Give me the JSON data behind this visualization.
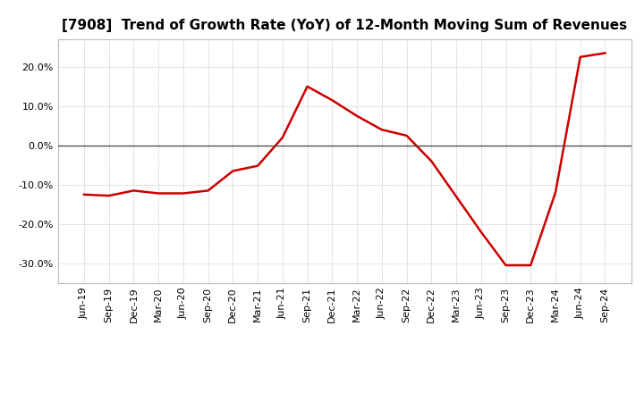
{
  "title": "[7908]  Trend of Growth Rate (YoY) of 12-Month Moving Sum of Revenues",
  "x_labels": [
    "Jun-19",
    "Sep-19",
    "Dec-19",
    "Mar-20",
    "Jun-20",
    "Sep-20",
    "Dec-20",
    "Mar-21",
    "Jun-21",
    "Sep-21",
    "Dec-21",
    "Mar-22",
    "Jun-22",
    "Sep-22",
    "Dec-22",
    "Mar-23",
    "Jun-23",
    "Sep-23",
    "Dec-23",
    "Mar-24",
    "Jun-24",
    "Sep-24"
  ],
  "y_values": [
    -12.5,
    -12.8,
    -11.5,
    -12.2,
    -12.2,
    -11.5,
    -6.5,
    -5.2,
    2.0,
    15.0,
    11.5,
    7.5,
    4.0,
    2.5,
    -4.0,
    -13.0,
    -22.0,
    -30.5,
    -30.5,
    -12.0,
    22.5,
    23.5
  ],
  "line_color": "#cc0000",
  "line_width": 1.8,
  "background_color": "#ffffff",
  "plot_bg_color": "#ffffff",
  "grid_color": "#999999",
  "ylim": [
    -35,
    27
  ],
  "yticks": [
    -30,
    -20,
    -10,
    0,
    10,
    20
  ],
  "zero_line_color": "#444444",
  "title_fontsize": 11,
  "tick_fontsize": 8
}
